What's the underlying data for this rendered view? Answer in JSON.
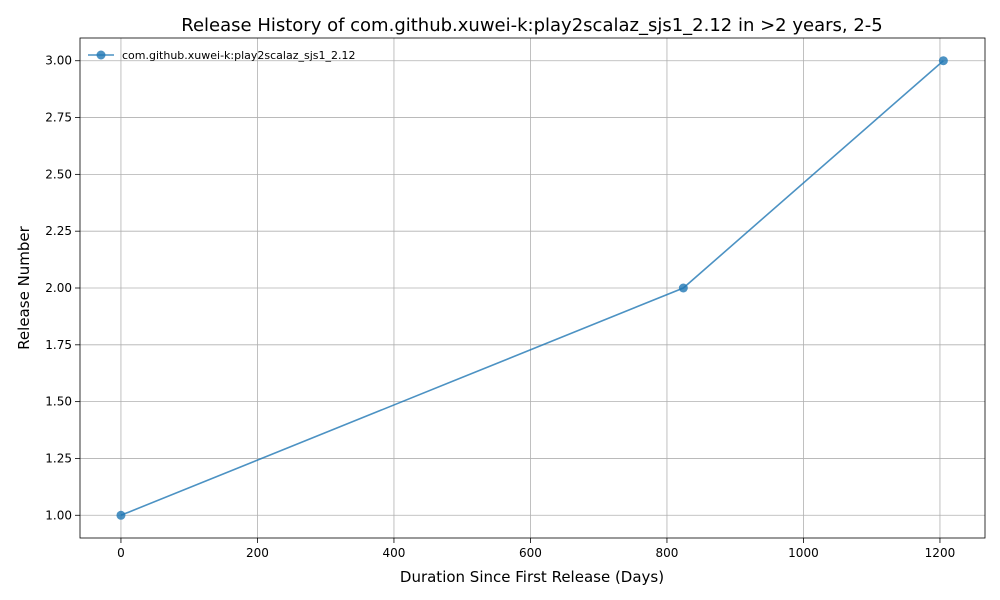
{
  "chart_data": {
    "type": "line",
    "title": "Release History of com.github.xuwei-k:play2scalaz_sjs1_2.12 in >2 years, 2-5",
    "xlabel": "Duration Since First Release (Days)",
    "ylabel": "Release Number",
    "xlim": [
      -60,
      1266
    ],
    "ylim": [
      0.9,
      3.1
    ],
    "xticks": [
      0,
      200,
      400,
      600,
      800,
      1000,
      1200
    ],
    "xtick_labels": [
      "0",
      "200",
      "400",
      "600",
      "800",
      "1000",
      "1200"
    ],
    "yticks": [
      1.0,
      1.25,
      1.5,
      1.75,
      2.0,
      2.25,
      2.5,
      2.75,
      3.0
    ],
    "ytick_labels": [
      "1.00",
      "1.25",
      "1.50",
      "1.75",
      "2.00",
      "2.25",
      "2.50",
      "2.75",
      "3.00"
    ],
    "grid": true,
    "legend_position": "top-left",
    "series": [
      {
        "name": "com.github.xuwei-k:play2scalaz_sjs1_2.12",
        "color": "#1f77b4",
        "marker": "circle",
        "x": [
          0,
          824,
          1205
        ],
        "y": [
          1,
          2,
          3
        ]
      }
    ]
  }
}
